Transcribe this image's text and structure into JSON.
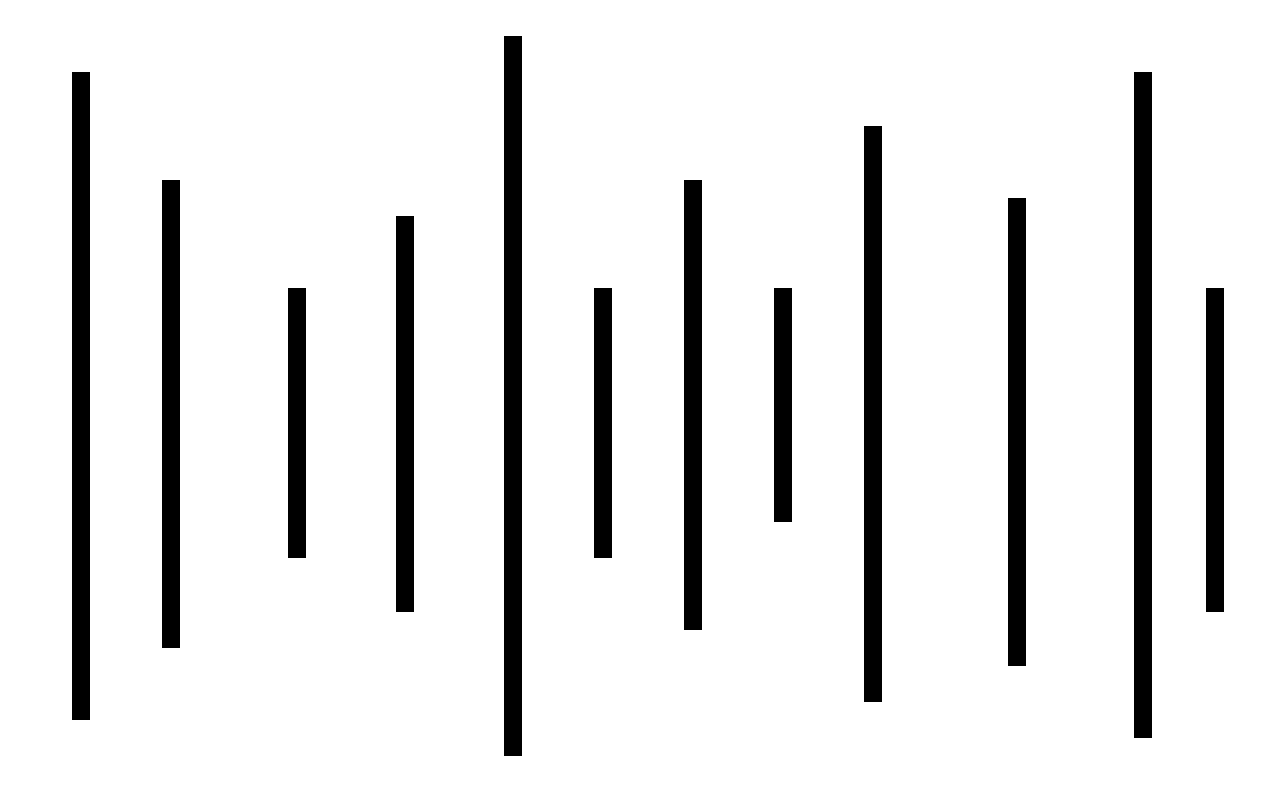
{
  "colors": {
    "background": "#ffffff",
    "bar": "#000000"
  },
  "bars": [
    {
      "name": "vertical-bar-1"
    },
    {
      "name": "vertical-bar-2"
    },
    {
      "name": "vertical-bar-3"
    },
    {
      "name": "vertical-bar-4"
    },
    {
      "name": "vertical-bar-5"
    },
    {
      "name": "vertical-bar-6"
    },
    {
      "name": "vertical-bar-7"
    },
    {
      "name": "vertical-bar-8"
    },
    {
      "name": "vertical-bar-9"
    },
    {
      "name": "vertical-bar-10"
    },
    {
      "name": "vertical-bar-11"
    },
    {
      "name": "vertical-bar-12"
    }
  ]
}
